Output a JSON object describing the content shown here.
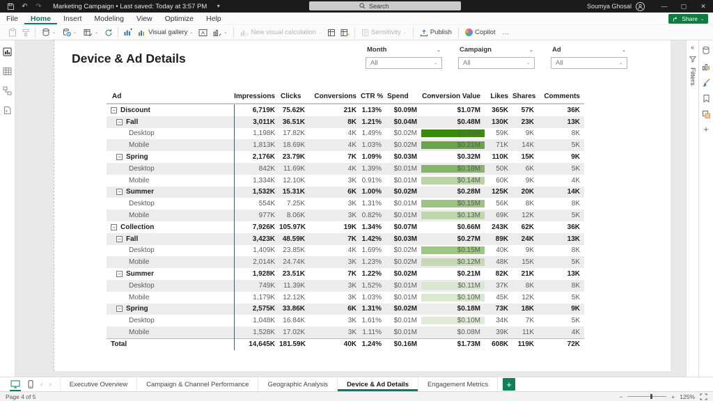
{
  "titlebar": {
    "document_title": "Marketing Campaign • Last saved: Today at 3:57 PM",
    "search_label": "Search",
    "user_name": "Soumya Ghosal"
  },
  "menu": {
    "items": [
      "File",
      "Home",
      "Insert",
      "Modeling",
      "View",
      "Optimize",
      "Help"
    ],
    "active": "Home",
    "share_label": "Share"
  },
  "ribbon": {
    "visual_gallery": "Visual gallery",
    "new_visual_calculation": "New visual calculation",
    "sensitivity": "Sensitivity",
    "publish": "Publish",
    "copilot": "Copilot",
    "more": "…"
  },
  "page": {
    "title": "Device & Ad Details",
    "slicers": [
      {
        "label": "Month",
        "value": "All"
      },
      {
        "label": "Campaign",
        "value": "All"
      },
      {
        "label": "Ad",
        "value": "All"
      }
    ]
  },
  "matrix": {
    "columns": [
      "Ad",
      "Impressions",
      "Clicks",
      "Conversions",
      "CTR %",
      "Spend",
      "Conversion Value",
      "Likes",
      "Shares",
      "Comments"
    ],
    "sorted_column": "Conversion Value",
    "rows": [
      {
        "label": "Discount",
        "level": 0,
        "bold": true,
        "expandable": true,
        "total": false,
        "values": [
          "6,719K",
          "75.62K",
          "21K",
          "1.13%",
          "$0.09M",
          "$1.07M",
          "365K",
          "57K",
          "36K"
        ],
        "cv_bg": ""
      },
      {
        "label": "Fall",
        "level": 1,
        "bold": true,
        "expandable": true,
        "total": false,
        "values": [
          "3,011K",
          "36.51K",
          "8K",
          "1.21%",
          "$0.04M",
          "$0.48M",
          "130K",
          "23K",
          "13K"
        ],
        "cv_bg": ""
      },
      {
        "label": "Desktop",
        "level": 2,
        "bold": false,
        "expandable": false,
        "total": false,
        "values": [
          "1,198K",
          "17.82K",
          "4K",
          "1.49%",
          "$0.02M",
          "$0.26M",
          "59K",
          "9K",
          "8K"
        ],
        "cv_bg": "#3a8a0d"
      },
      {
        "label": "Mobile",
        "level": 2,
        "bold": false,
        "expandable": false,
        "total": false,
        "values": [
          "1,813K",
          "18.69K",
          "4K",
          "1.03%",
          "$0.02M",
          "$0.21M",
          "71K",
          "14K",
          "5K"
        ],
        "cv_bg": "#6ba549"
      },
      {
        "label": "Spring",
        "level": 1,
        "bold": true,
        "expandable": true,
        "total": false,
        "values": [
          "2,176K",
          "23.79K",
          "7K",
          "1.09%",
          "$0.03M",
          "$0.32M",
          "110K",
          "15K",
          "9K"
        ],
        "cv_bg": ""
      },
      {
        "label": "Desktop",
        "level": 2,
        "bold": false,
        "expandable": false,
        "total": false,
        "values": [
          "842K",
          "11.69K",
          "4K",
          "1.39%",
          "$0.01M",
          "$0.18M",
          "50K",
          "6K",
          "5K"
        ],
        "cv_bg": "#85b566"
      },
      {
        "label": "Mobile",
        "level": 2,
        "bold": false,
        "expandable": false,
        "total": false,
        "values": [
          "1,334K",
          "12.10K",
          "3K",
          "0.91%",
          "$0.01M",
          "$0.14M",
          "60K",
          "9K",
          "4K"
        ],
        "cv_bg": "#bad3a7"
      },
      {
        "label": "Summer",
        "level": 1,
        "bold": true,
        "expandable": true,
        "total": false,
        "values": [
          "1,532K",
          "15.31K",
          "6K",
          "1.00%",
          "$0.02M",
          "$0.28M",
          "125K",
          "20K",
          "14K"
        ],
        "cv_bg": ""
      },
      {
        "label": "Desktop",
        "level": 2,
        "bold": false,
        "expandable": false,
        "total": false,
        "values": [
          "554K",
          "7.25K",
          "3K",
          "1.31%",
          "$0.01M",
          "$0.15M",
          "56K",
          "8K",
          "8K"
        ],
        "cv_bg": "#9dc481"
      },
      {
        "label": "Mobile",
        "level": 2,
        "bold": false,
        "expandable": false,
        "total": false,
        "values": [
          "977K",
          "8.06K",
          "3K",
          "0.82%",
          "$0.01M",
          "$0.13M",
          "69K",
          "12K",
          "5K"
        ],
        "cv_bg": "#c0d7ae"
      },
      {
        "label": "Collection",
        "level": 0,
        "bold": true,
        "expandable": true,
        "total": false,
        "values": [
          "7,926K",
          "105.97K",
          "19K",
          "1.34%",
          "$0.07M",
          "$0.66M",
          "243K",
          "62K",
          "36K"
        ],
        "cv_bg": ""
      },
      {
        "label": "Fall",
        "level": 1,
        "bold": true,
        "expandable": true,
        "total": false,
        "values": [
          "3,423K",
          "48.59K",
          "7K",
          "1.42%",
          "$0.03M",
          "$0.27M",
          "89K",
          "24K",
          "13K"
        ],
        "cv_bg": ""
      },
      {
        "label": "Desktop",
        "level": 2,
        "bold": false,
        "expandable": false,
        "total": false,
        "values": [
          "1,409K",
          "23.85K",
          "4K",
          "1.69%",
          "$0.02M",
          "$0.15M",
          "40K",
          "9K",
          "8K"
        ],
        "cv_bg": "#a0c685"
      },
      {
        "label": "Mobile",
        "level": 2,
        "bold": false,
        "expandable": false,
        "total": false,
        "values": [
          "2,014K",
          "24.74K",
          "3K",
          "1.23%",
          "$0.02M",
          "$0.12M",
          "48K",
          "15K",
          "5K"
        ],
        "cv_bg": "#c5dab4"
      },
      {
        "label": "Summer",
        "level": 1,
        "bold": true,
        "expandable": true,
        "total": false,
        "values": [
          "1,928K",
          "23.51K",
          "7K",
          "1.22%",
          "$0.02M",
          "$0.21M",
          "82K",
          "21K",
          "13K"
        ],
        "cv_bg": ""
      },
      {
        "label": "Desktop",
        "level": 2,
        "bold": false,
        "expandable": false,
        "total": false,
        "values": [
          "749K",
          "11.39K",
          "3K",
          "1.52%",
          "$0.01M",
          "$0.11M",
          "37K",
          "8K",
          "8K"
        ],
        "cv_bg": "#d8e7cd"
      },
      {
        "label": "Mobile",
        "level": 2,
        "bold": false,
        "expandable": false,
        "total": false,
        "values": [
          "1,179K",
          "12.12K",
          "3K",
          "1.03%",
          "$0.01M",
          "$0.10M",
          "45K",
          "12K",
          "5K"
        ],
        "cv_bg": "#d9e8ce"
      },
      {
        "label": "Spring",
        "level": 1,
        "bold": true,
        "expandable": true,
        "total": false,
        "values": [
          "2,575K",
          "33.86K",
          "6K",
          "1.31%",
          "$0.02M",
          "$0.18M",
          "73K",
          "18K",
          "9K"
        ],
        "cv_bg": ""
      },
      {
        "label": "Desktop",
        "level": 2,
        "bold": false,
        "expandable": false,
        "total": false,
        "values": [
          "1,048K",
          "16.84K",
          "3K",
          "1.61%",
          "$0.01M",
          "$0.10M",
          "34K",
          "7K",
          "5K"
        ],
        "cv_bg": "#dfecd6"
      },
      {
        "label": "Mobile",
        "level": 2,
        "bold": false,
        "expandable": false,
        "total": false,
        "values": [
          "1,528K",
          "17.02K",
          "3K",
          "1.11%",
          "$0.01M",
          "$0.08M",
          "39K",
          "11K",
          "4K"
        ],
        "cv_bg": ""
      },
      {
        "label": "Total",
        "level": 0,
        "bold": true,
        "expandable": false,
        "total": true,
        "values": [
          "14,645K",
          "181.59K",
          "40K",
          "1.24%",
          "$0.16M",
          "$1.73M",
          "608K",
          "119K",
          "72K"
        ],
        "cv_bg": ""
      }
    ]
  },
  "filters_pane": {
    "label": "Filters"
  },
  "pages": {
    "tabs": [
      "Executive Overview",
      "Campaign & Channel Performance",
      "Geographic Analysis",
      "Device & Ad Details",
      "Engagement Metrics"
    ],
    "active": "Device & Ad Details",
    "add_label": "+"
  },
  "statusbar": {
    "page_indicator": "Page 4 of 5",
    "zoom_level": "125%"
  },
  "colors": {
    "accent_teal": "#117865",
    "share_green": "#0f7b41",
    "matrix_divider": "#44546a",
    "stripe": "#ececec"
  }
}
